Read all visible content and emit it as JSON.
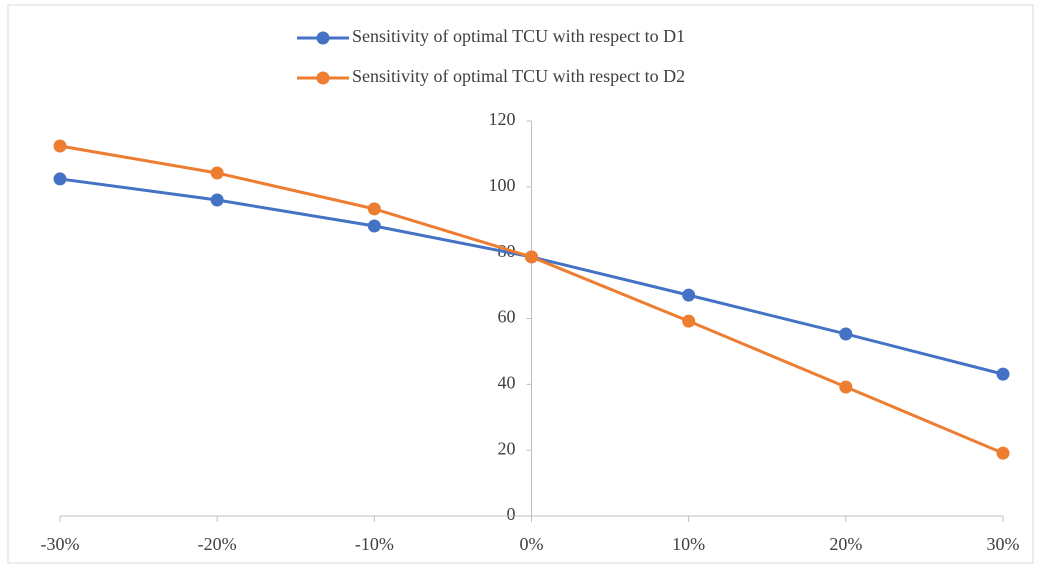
{
  "chart_data": {
    "type": "line",
    "x": [
      -30,
      -20,
      -10,
      0,
      10,
      20,
      30
    ],
    "series": [
      {
        "name": "Sensitivity of optimal TCU with respect to D1",
        "color": "#4472c4",
        "values": [
          102.4,
          96,
          88.1,
          78.7,
          67.1,
          55.3,
          43.1
        ]
      },
      {
        "name": "Sensitivity of optimal TCU with respect to D2",
        "color": "#ed7d31",
        "values": [
          112.4,
          104.2,
          93.3,
          78.7,
          59.2,
          39.2,
          19.1
        ]
      }
    ],
    "xlim": [
      -30,
      30
    ],
    "xticks": [
      {
        "value": -30,
        "label": "-30%"
      },
      {
        "value": -20,
        "label": "-20%"
      },
      {
        "value": -10,
        "label": "-10%"
      },
      {
        "value": 0,
        "label": "0%"
      },
      {
        "value": 10,
        "label": "10%"
      },
      {
        "value": 20,
        "label": "20%"
      },
      {
        "value": 30,
        "label": "30%"
      }
    ],
    "ylim": [
      0,
      120
    ],
    "yticks": [
      0,
      20,
      40,
      60,
      80,
      100,
      120
    ],
    "grid": false,
    "legend": "top"
  }
}
